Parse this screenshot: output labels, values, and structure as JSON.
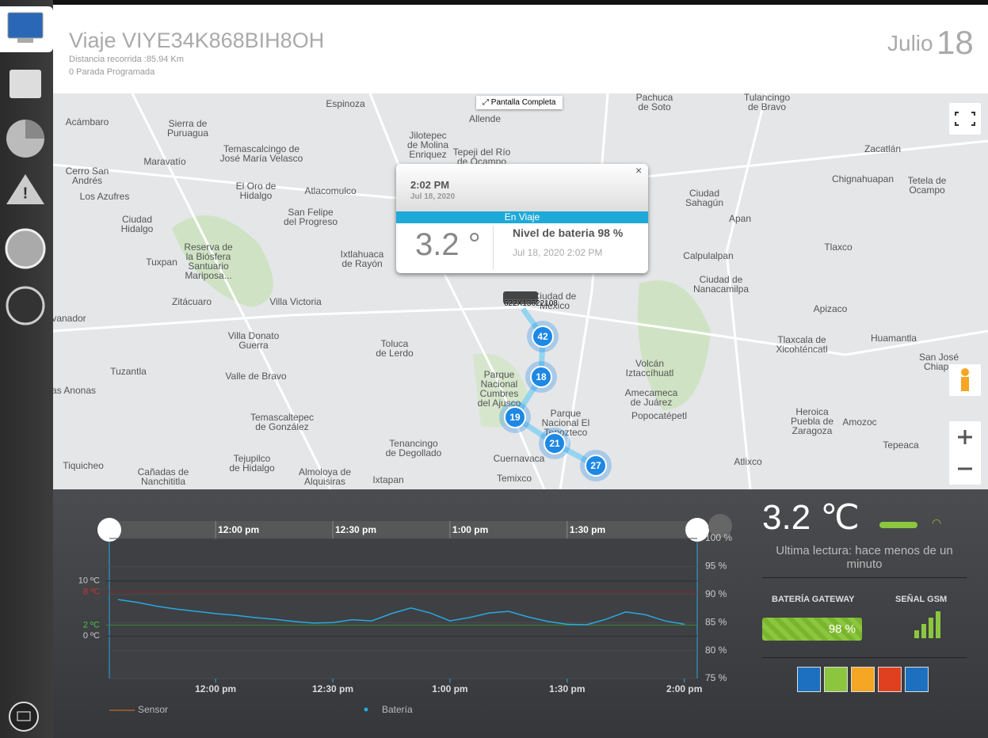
{
  "header": {
    "title": "Viaje VIYE34K868BIH8OH",
    "distance": "Distancia recorrida :85.94 Km",
    "stops": "0 Parada Programada",
    "month": "Julio",
    "day": "18"
  },
  "map": {
    "fullscreen": "Pantalla Completa",
    "popup": {
      "time": "2:02 PM",
      "date": "Jul 18, 2020",
      "status": "En Viaje",
      "temperature": "3.2 °",
      "battery": "Nivel de bateria 98 %",
      "timestamp": "Jul 18, 2020 2:02 PM"
    },
    "vehicle": "622X13622108",
    "clusters": [
      42,
      18,
      19,
      21,
      27
    ],
    "labels": [
      "Acámbaro",
      "Sierra de\nPuruagua",
      "Maravatío",
      "Cerro San\nAndrés",
      "Los Azufres",
      "Ciudad\nHidalgo",
      "Tuxpan",
      "Reserva de\nla Biósfera\nSantuario\nMariposa...",
      "Zitácuaro",
      "Villa Victoria",
      "Villa Donato\nGuerra",
      "Tuzantla",
      "Valle de Bravo",
      "Temascaltepec\nde González",
      "Tejupilco\nde Hidalgo",
      "Cañadas de\nNanchititla",
      "Tiquicheo",
      "Almoloya de\nAlquisiras",
      "Tenancingo\nde Degollado",
      "Toluca\nde Lerdo",
      "Ixtlahuaca\nde Rayón",
      "San Felipe\ndel Progreso",
      "Atlacomulco",
      "El Oro de\nHidalgo",
      "Temascalcingo de\nJosé María Velasco",
      "Jilotepec\nde Molina\nEnriquez",
      "Tepeji del Río\nde Ocampo",
      "Allende",
      "Ciudad\nSahagún",
      "Apan",
      "Calpulalpan",
      "Ciudad de\nNanacamilpa",
      "Apizaco",
      "Tlaxco",
      "Chignahuapan",
      "Zacatlán",
      "Tetela de\nOcampo",
      "Huamantla",
      "Tlaxcala de\nXicohténcatl",
      "San José\nChiapa",
      "Volcán\nIztaccíhuatl",
      "Amecameca\nde Juárez",
      "Popocatépetl",
      "Heroica\nPuebla de\nZaragoza",
      "Amozoc",
      "Tepeaca",
      "Atlixco",
      "Parque\nNacional\nCumbres\ndel Ajusco",
      "Parque\nNacional El\nTepozteco",
      "Cuernavaca",
      "Temixco",
      "Ciudad de\nMéxico",
      "Tulancingo\nde Bravo",
      "Pachuca\nde Soto",
      "Espinoza",
      "vanador",
      "as Anonas",
      "Ixtapan"
    ]
  },
  "chart_data": {
    "type": "line",
    "x": [
      695,
      700,
      705,
      710,
      715,
      720,
      725,
      730,
      735,
      740,
      745,
      750,
      755,
      760,
      765,
      770,
      775,
      780,
      785,
      790,
      795,
      800,
      805,
      810,
      815,
      820,
      825,
      830,
      835,
      840
    ],
    "xlim": [
      692.8,
      843.3
    ],
    "xticks": [
      {
        "value": 720,
        "label": "12:00 pm"
      },
      {
        "value": 750,
        "label": "12:30 pm"
      },
      {
        "value": 780,
        "label": "1:00 pm"
      },
      {
        "value": 810,
        "label": "1:30 pm"
      },
      {
        "value": 840,
        "label": "2:00 pm"
      }
    ],
    "ylim": [
      -7.7,
      17.7
    ],
    "yticks": [
      {
        "value": 0,
        "label": "0 ºC"
      },
      {
        "value": 2,
        "label": "2 ºC"
      },
      {
        "value": 8,
        "label": "8 ºC"
      },
      {
        "value": 10,
        "label": "10 ºC"
      }
    ],
    "y2lim": [
      75,
      100
    ],
    "y2ticks": [
      {
        "value": 75,
        "label": "75 %"
      },
      {
        "value": 80,
        "label": "80 %"
      },
      {
        "value": 85,
        "label": "85 %"
      },
      {
        "value": 90,
        "label": "90 %"
      },
      {
        "value": 95,
        "label": "95 %"
      },
      {
        "value": 100,
        "label": "100 %"
      }
    ],
    "series": [
      {
        "name": "Sensor",
        "color": "#e8772e",
        "values": [
          null,
          null,
          null,
          null,
          null,
          null,
          null,
          null,
          null,
          null,
          null,
          null,
          null,
          null,
          null,
          null,
          null,
          null,
          null,
          null,
          null,
          null,
          null,
          null,
          null,
          null,
          null,
          null,
          null,
          null
        ]
      },
      {
        "name": "Batería",
        "color": "#29a8e0",
        "axis": "y2",
        "values": [
          89.1,
          88.6,
          87.9,
          87.4,
          87.0,
          86.6,
          86.3,
          85.9,
          85.6,
          85.2,
          84.9,
          85.0,
          85.5,
          85.3,
          86.6,
          87.6,
          86.7,
          85.3,
          85.9,
          86.7,
          87.0,
          86.0,
          85.2,
          84.7,
          84.6,
          85.6,
          86.9,
          86.4,
          85.3,
          84.7
        ]
      }
    ]
  },
  "panel": {
    "temperature": "3.2 ℃",
    "last_reading": "Ultima lectura: hace menos de un minuto",
    "battery_title": "BATERÍA GATEWAY",
    "battery_value": "98 %",
    "gsm_title": "SEÑAL GSM"
  }
}
